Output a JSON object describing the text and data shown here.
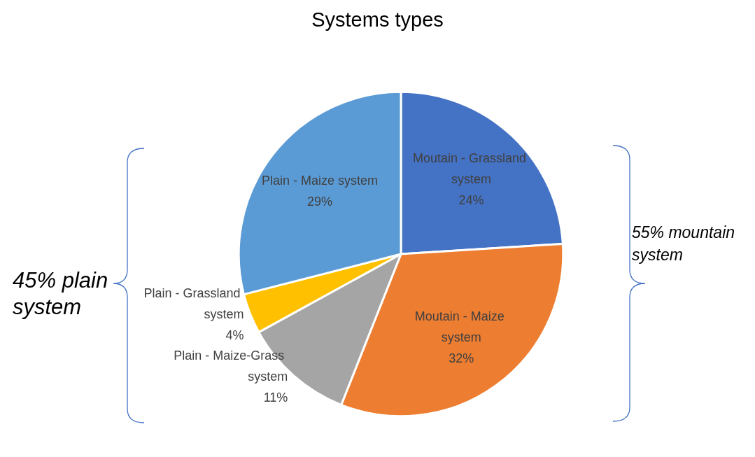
{
  "chart_data": {
    "type": "pie",
    "title": "Systems types",
    "categories": [
      "Moutain - Grassland system",
      "Moutain - Maize system",
      "Plain - Maize-Grass system",
      "Plain - Grassland system",
      "Plain - Maize system"
    ],
    "values": [
      24,
      32,
      11,
      4,
      29
    ],
    "value_labels": [
      "24%",
      "32%",
      "11%",
      "4%",
      "29%"
    ],
    "colors": [
      "#4472c4",
      "#ed7d31",
      "#a5a5a5",
      "#ffc000",
      "#5b9bd5"
    ],
    "legend": false,
    "annotations": [
      "45% plain system",
      "55% mountain system"
    ]
  }
}
